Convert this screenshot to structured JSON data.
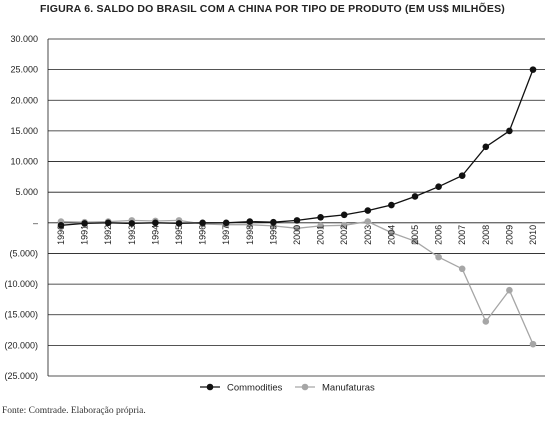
{
  "chart_data": {
    "type": "line",
    "title": "FIGURA 6. SALDO DO BRASIL COM A CHINA POR TIPO DE PRODUTO (EM US$ MILHÕES)",
    "xlabel": "",
    "ylabel": "",
    "categories": [
      "1990",
      "1991",
      "1992",
      "1993",
      "1994",
      "1995",
      "1996",
      "1997",
      "1998",
      "1999",
      "2000",
      "2001",
      "2002",
      "2003",
      "2004",
      "2005",
      "2006",
      "2007",
      "2008",
      "2009",
      "2010"
    ],
    "yticks": [
      "30.000",
      "25.000",
      "20.000",
      "15.000",
      "10.000",
      "5.000",
      "–",
      "(5.000)",
      "(10.000)",
      "(15.000)",
      "(20.000)",
      "(25.000)"
    ],
    "ylim": [
      -25000,
      30000
    ],
    "grid": true,
    "legend_position": "bottom",
    "series": [
      {
        "name": "Commodities",
        "color": "#111111",
        "values": [
          -400,
          -100,
          0,
          -100,
          0,
          -100,
          0,
          0,
          200,
          100,
          400,
          900,
          1300,
          2000,
          2900,
          4300,
          5900,
          7700,
          12400,
          15000,
          25000
        ]
      },
      {
        "name": "Manufaturas",
        "color": "#a6a6a6",
        "values": [
          200,
          100,
          200,
          400,
          300,
          400,
          -200,
          -300,
          -300,
          -500,
          -900,
          -500,
          -400,
          200,
          -1600,
          -3000,
          -5600,
          -7500,
          -16100,
          -11000,
          -19800
        ]
      }
    ]
  },
  "source_note": "Fonte: Comtrade. Elaboração própria."
}
